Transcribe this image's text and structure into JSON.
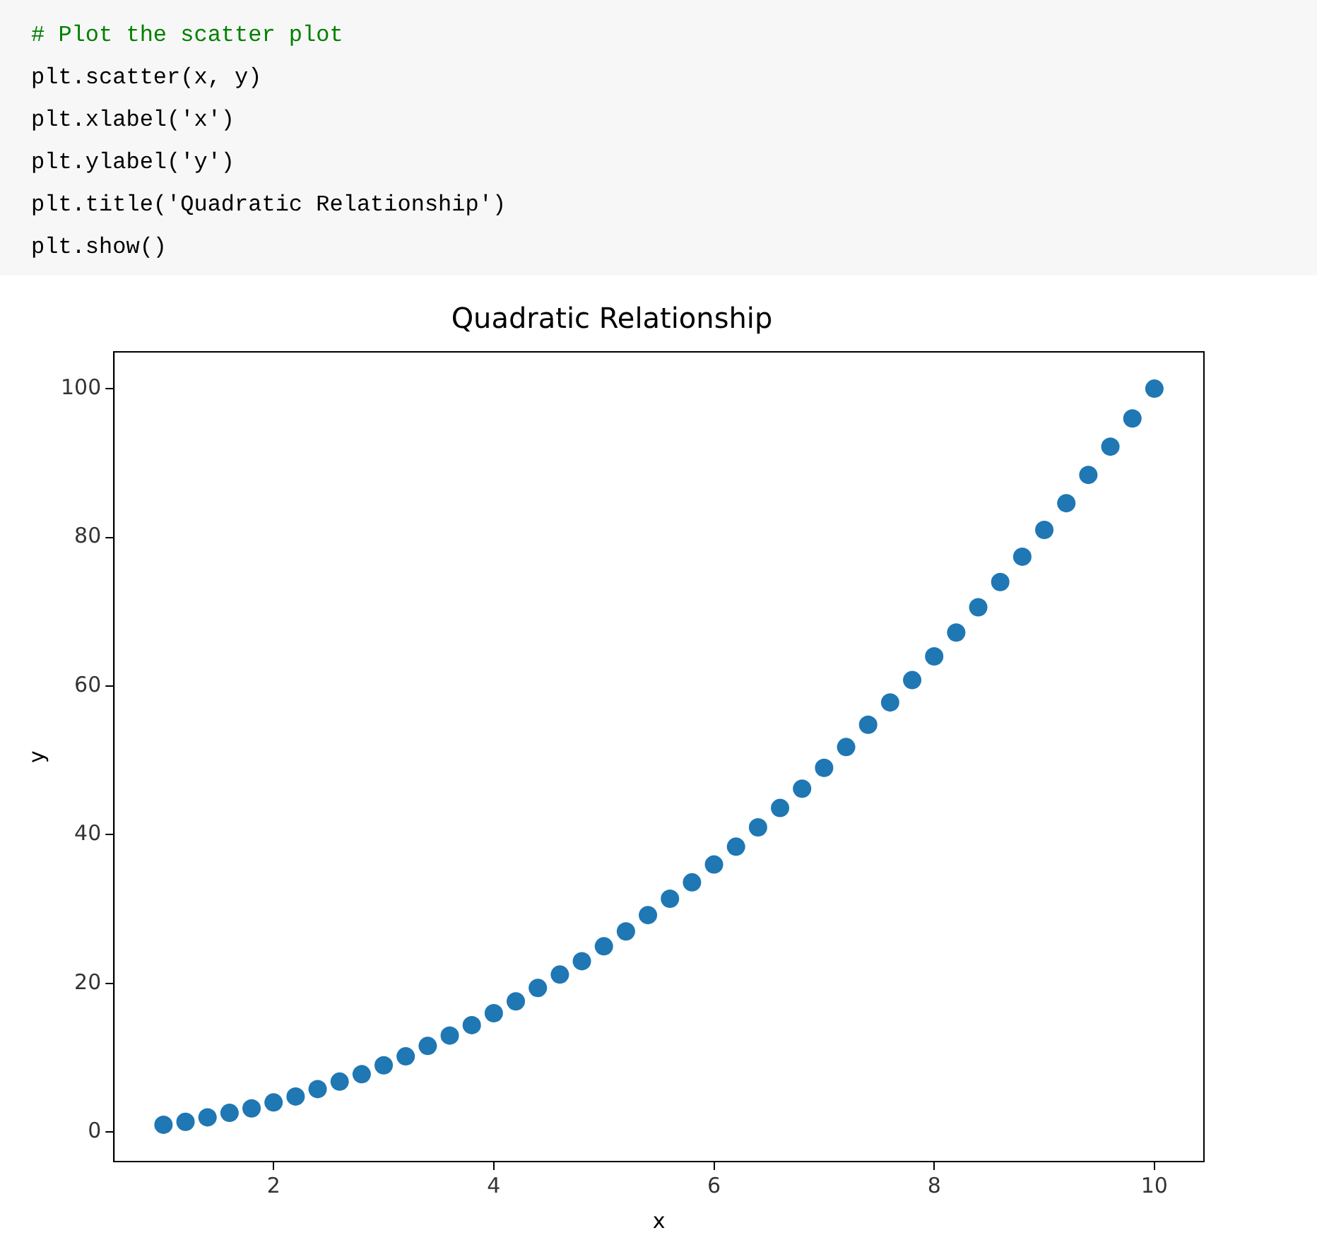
{
  "chart_data": {
    "type": "scatter",
    "title": "Quadratic Relationship",
    "xlabel": "x",
    "ylabel": "y",
    "annotations": [
      "# Plot the scatter plot",
      "plt.scatter(x, y)",
      "plt.xlabel('x')",
      "plt.ylabel('y')",
      "plt.title('Quadratic Relationship')",
      "plt.show()"
    ],
    "xlim": [
      0.55,
      10.45
    ],
    "ylim": [
      -3.95,
      104.95
    ],
    "xticks": [
      2,
      4,
      6,
      8,
      10
    ],
    "yticks": [
      0,
      20,
      40,
      60,
      80,
      100
    ],
    "grid": false,
    "legend": false,
    "marker": "circle",
    "series": [
      {
        "color": "#1f77b4",
        "x": [
          1.0,
          1.2,
          1.4,
          1.6,
          1.8,
          2.0,
          2.2,
          2.4,
          2.6,
          2.8,
          3.0,
          3.2,
          3.4,
          3.6,
          3.8,
          4.0,
          4.2,
          4.4,
          4.6,
          4.8,
          5.0,
          5.2,
          5.4,
          5.6,
          5.8,
          6.0,
          6.2,
          6.4,
          6.6,
          6.8,
          7.0,
          7.2,
          7.4,
          7.6,
          7.8,
          8.0,
          8.2,
          8.4,
          8.6,
          8.8,
          9.0,
          9.2,
          9.4,
          9.6,
          9.8,
          10.0
        ],
        "values": [
          1.0,
          1.4,
          2.0,
          2.6,
          3.2,
          4,
          4.8,
          5.8,
          6.8,
          7.8,
          9,
          10.2,
          11.6,
          13.0,
          14.4,
          16,
          17.6,
          19.4,
          21.2,
          23.0,
          25,
          27.0,
          29.2,
          31.4,
          33.6,
          36,
          38.4,
          41.0,
          43.6,
          46.2,
          49,
          51.8,
          54.8,
          57.8,
          60.8,
          64,
          67.2,
          70.6,
          74.0,
          77.4,
          81,
          84.6,
          88.4,
          92.2,
          96.0,
          100
        ]
      }
    ]
  }
}
